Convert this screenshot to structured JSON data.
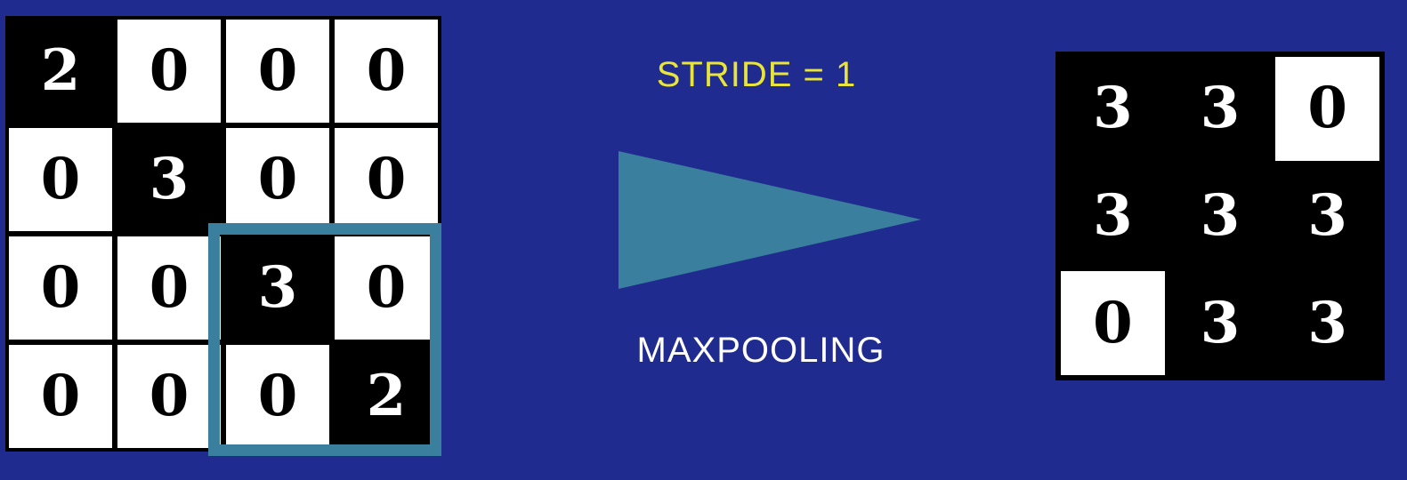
{
  "stride_label": "STRIDE = 1",
  "operation_label": "MAXPOOLING",
  "colors": {
    "background": "#1f2b8e",
    "window_border": "#3a7f9d",
    "arrow_fill": "#3a7f9d",
    "stride_text": "#e8e43a",
    "operation_text": "#ffffff"
  },
  "input_grid": [
    [
      {
        "value": "2",
        "shade": "black"
      },
      {
        "value": "0",
        "shade": "white"
      },
      {
        "value": "0",
        "shade": "white"
      },
      {
        "value": "0",
        "shade": "white"
      }
    ],
    [
      {
        "value": "0",
        "shade": "white"
      },
      {
        "value": "3",
        "shade": "black"
      },
      {
        "value": "0",
        "shade": "white"
      },
      {
        "value": "0",
        "shade": "white"
      }
    ],
    [
      {
        "value": "0",
        "shade": "white"
      },
      {
        "value": "0",
        "shade": "white"
      },
      {
        "value": "3",
        "shade": "black"
      },
      {
        "value": "0",
        "shade": "white"
      }
    ],
    [
      {
        "value": "0",
        "shade": "white"
      },
      {
        "value": "0",
        "shade": "white"
      },
      {
        "value": "0",
        "shade": "white"
      },
      {
        "value": "2",
        "shade": "black"
      }
    ]
  ],
  "output_grid": [
    [
      {
        "value": "3",
        "shade": "black"
      },
      {
        "value": "3",
        "shade": "black"
      },
      {
        "value": "0",
        "shade": "white"
      }
    ],
    [
      {
        "value": "3",
        "shade": "black"
      },
      {
        "value": "3",
        "shade": "black"
      },
      {
        "value": "3",
        "shade": "black"
      }
    ],
    [
      {
        "value": "0",
        "shade": "white"
      },
      {
        "value": "3",
        "shade": "black"
      },
      {
        "value": "3",
        "shade": "black"
      }
    ]
  ]
}
